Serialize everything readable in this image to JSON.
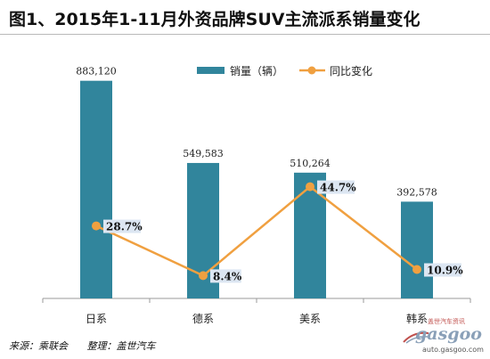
{
  "title": "图1、2015年1-11月外资品牌SUV主流派系销量变化",
  "source": {
    "origin": "来源：乘联会",
    "compiled": "整理：盖世汽车"
  },
  "watermark": {
    "cn": "盖世汽车资讯",
    "logo": "gasgoo",
    "url": "auto.gasgoo.com"
  },
  "colors": {
    "bar": "#31859c",
    "line": "#f0a040",
    "label_bg": "#dce6f2"
  },
  "chart_data": {
    "type": "bar",
    "categories": [
      "日系",
      "德系",
      "美系",
      "韩系"
    ],
    "series": [
      {
        "name": "销量（辆）",
        "type": "bar",
        "values": [
          883120,
          549583,
          510264,
          392578
        ],
        "labels": [
          "883,120",
          "549,583",
          "510,264",
          "392,578"
        ]
      },
      {
        "name": "同比变化",
        "type": "line",
        "values": [
          28.7,
          8.4,
          44.7,
          10.9
        ],
        "labels": [
          "28.7%",
          "8.4%",
          "44.7%",
          "10.9%"
        ]
      }
    ],
    "legend_position": "top-right",
    "grid": false
  }
}
